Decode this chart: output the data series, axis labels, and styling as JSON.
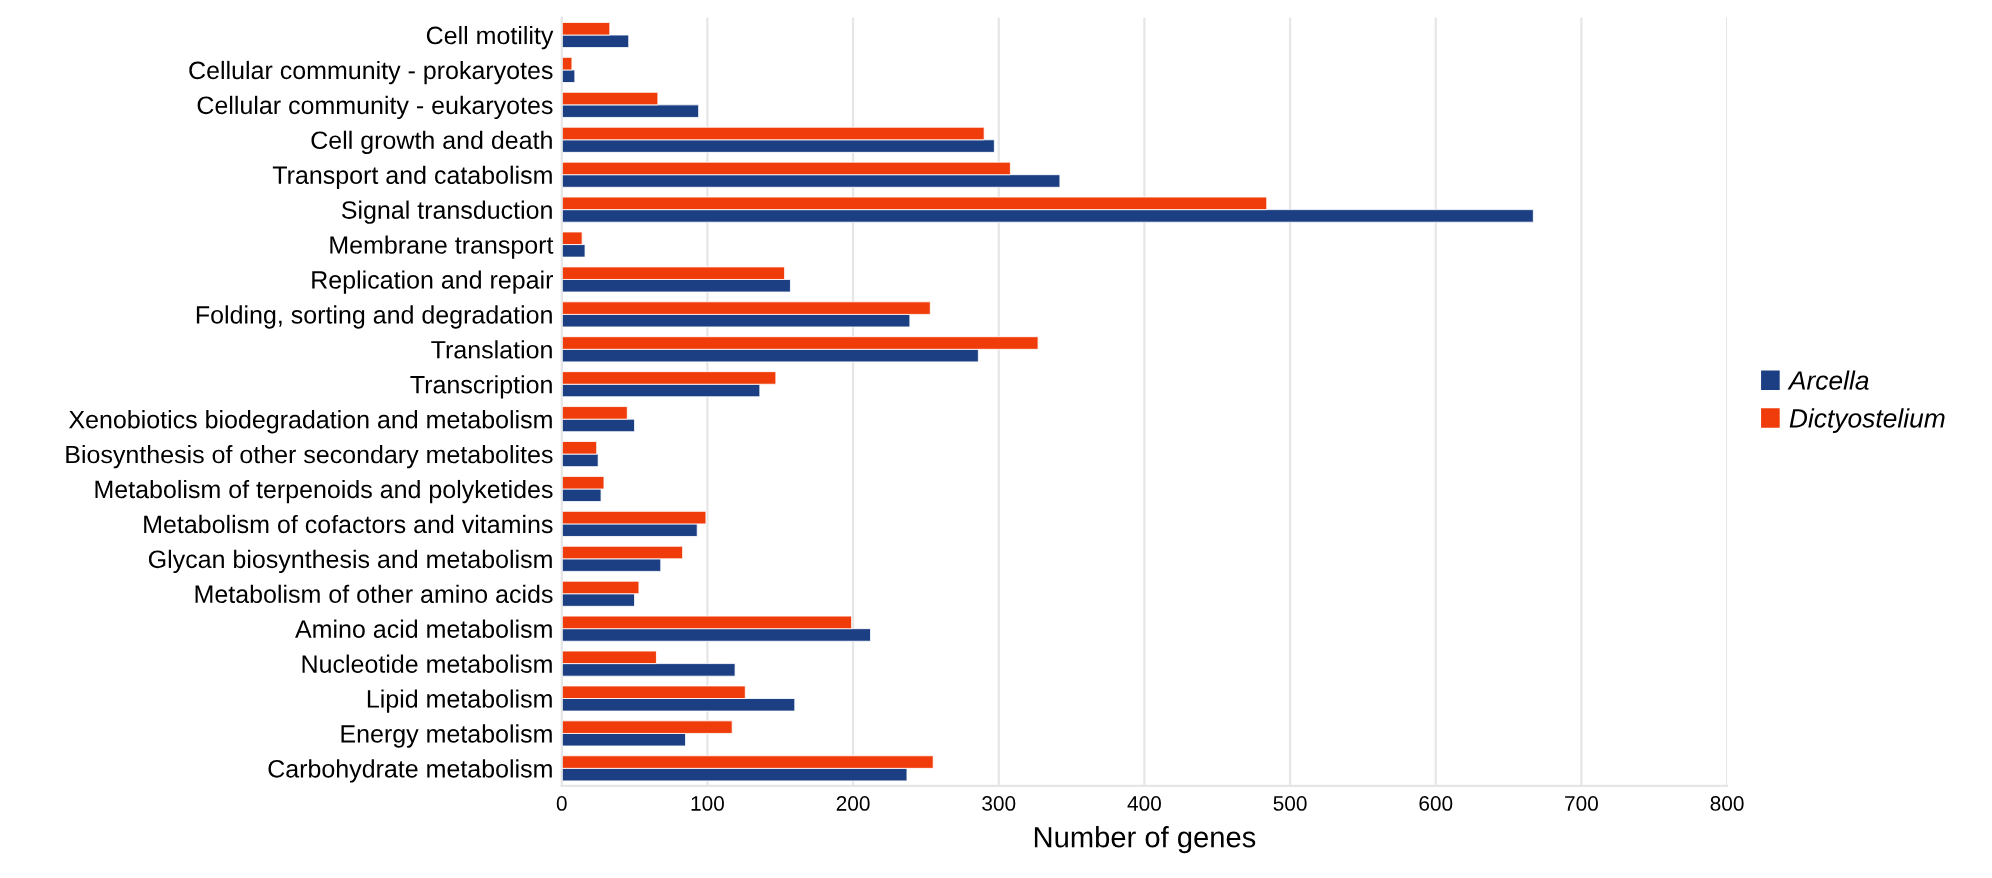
{
  "chart_data": {
    "type": "bar",
    "orientation": "horizontal",
    "xlabel": "Number of genes",
    "categories": [
      "Cell motility",
      "Cellular community - prokaryotes",
      "Cellular community - eukaryotes",
      "Cell growth and death",
      "Transport and catabolism",
      "Signal transduction",
      "Membrane transport",
      "Replication and repair",
      "Folding, sorting and degradation",
      "Translation",
      "Transcription",
      "Xenobiotics biodegradation and metabolism",
      "Biosynthesis of other secondary metabolites",
      "Metabolism of terpenoids and polyketides",
      "Metabolism of cofactors and vitamins",
      "Glycan biosynthesis and metabolism",
      "Metabolism of other amino acids",
      "Amino acid metabolism",
      "Nucleotide metabolism",
      "Lipid metabolism",
      "Energy metabolism",
      "Carbohydrate metabolism"
    ],
    "series": [
      {
        "name": "Arcella",
        "color": "#1c3f84",
        "values": [
          46,
          9,
          94,
          297,
          342,
          667,
          16,
          157,
          239,
          286,
          136,
          50,
          25,
          27,
          93,
          68,
          50,
          212,
          119,
          160,
          85,
          237
        ]
      },
      {
        "name": "Dictyostelium",
        "color": "#f03c0a",
        "values": [
          33,
          7,
          66,
          290,
          308,
          484,
          14,
          153,
          253,
          327,
          147,
          45,
          24,
          29,
          99,
          83,
          53,
          199,
          65,
          126,
          117,
          255
        ]
      }
    ],
    "xlim": [
      0,
      800
    ],
    "xticks": [
      0,
      100,
      200,
      300,
      400,
      500,
      600,
      700,
      800
    ],
    "grid": "x",
    "legend": "right"
  }
}
